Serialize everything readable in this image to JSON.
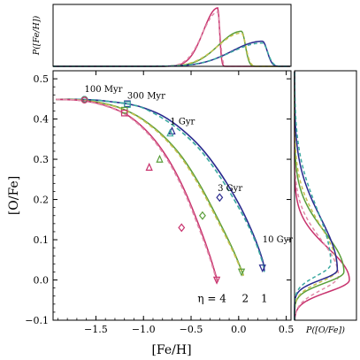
{
  "chart_data": {
    "type": "line",
    "main": {
      "xlabel": "[Fe/H]",
      "ylabel": "[O/Fe]",
      "xlim": [
        -1.95,
        0.55
      ],
      "ylim": [
        -0.1,
        0.52
      ],
      "xticks": [
        -1.5,
        -1.0,
        -0.5,
        0.0,
        0.5
      ],
      "xtick_labels": [
        "−1.5",
        "−1.0",
        "−0.5",
        "0.0",
        "0.5"
      ],
      "yticks": [
        -0.1,
        0.0,
        0.1,
        0.2,
        0.3,
        0.4,
        0.5
      ],
      "ytick_labels": [
        "−0.1",
        "0.0",
        "0.1",
        "0.2",
        "0.3",
        "0.4",
        "0.5"
      ],
      "age_annotations": [
        {
          "text": "100 Myr",
          "x": -1.62,
          "y": 0.458
        },
        {
          "text": "300 Myr",
          "x": -1.17,
          "y": 0.442
        },
        {
          "text": "1 Gyr",
          "x": -0.72,
          "y": 0.378
        },
        {
          "text": "3 Gyr",
          "x": -0.22,
          "y": 0.212
        },
        {
          "text": "10 Gyr",
          "x": 0.25,
          "y": 0.085
        }
      ],
      "eta_labels": [
        {
          "text": "η = 4",
          "x": -0.28,
          "y": -0.055
        },
        {
          "text": "2",
          "x": 0.07,
          "y": -0.055
        },
        {
          "text": "1",
          "x": 0.27,
          "y": -0.055
        }
      ],
      "series": [
        {
          "color": "#2a2a8f",
          "style": "solid",
          "x": [
            -1.92,
            -1.7,
            -1.5,
            -1.3,
            -1.15,
            -1.0,
            -0.8,
            -0.6,
            -0.4,
            -0.2,
            0.0,
            0.15,
            0.25,
            0.27
          ],
          "y": [
            0.449,
            0.449,
            0.447,
            0.442,
            0.437,
            0.428,
            0.408,
            0.375,
            0.33,
            0.268,
            0.19,
            0.115,
            0.05,
            0.022
          ]
        },
        {
          "color": "#3aa8a0",
          "style": "dashed",
          "x": [
            -1.92,
            -1.7,
            -1.5,
            -1.3,
            -1.15,
            -1.0,
            -0.8,
            -0.6,
            -0.4,
            -0.2,
            0.0,
            0.15,
            0.25,
            0.27
          ],
          "y": [
            0.449,
            0.449,
            0.447,
            0.442,
            0.437,
            0.427,
            0.402,
            0.368,
            0.322,
            0.258,
            0.18,
            0.11,
            0.045,
            0.02
          ]
        },
        {
          "color": "#5a9e3a",
          "style": "solid",
          "x": [
            -1.92,
            -1.7,
            -1.5,
            -1.3,
            -1.15,
            -1.0,
            -0.8,
            -0.6,
            -0.4,
            -0.2,
            -0.05,
            0.05
          ],
          "y": [
            0.449,
            0.448,
            0.443,
            0.432,
            0.418,
            0.398,
            0.36,
            0.307,
            0.233,
            0.143,
            0.07,
            0.012
          ]
        },
        {
          "color": "#c8c050",
          "style": "dashed",
          "x": [
            -1.92,
            -1.7,
            -1.5,
            -1.3,
            -1.15,
            -1.0,
            -0.8,
            -0.6,
            -0.4,
            -0.2,
            -0.05,
            0.05
          ],
          "y": [
            0.449,
            0.448,
            0.442,
            0.431,
            0.417,
            0.396,
            0.357,
            0.303,
            0.228,
            0.138,
            0.066,
            0.01
          ]
        },
        {
          "color": "#c8336e",
          "style": "solid",
          "x": [
            -1.92,
            -1.7,
            -1.5,
            -1.3,
            -1.15,
            -1.0,
            -0.85,
            -0.7,
            -0.55,
            -0.4,
            -0.3,
            -0.22
          ],
          "y": [
            0.449,
            0.447,
            0.44,
            0.425,
            0.407,
            0.378,
            0.338,
            0.284,
            0.213,
            0.125,
            0.058,
            -0.005
          ]
        },
        {
          "color": "#e08aa8",
          "style": "dashed",
          "x": [
            -1.92,
            -1.7,
            -1.5,
            -1.3,
            -1.15,
            -1.0,
            -0.85,
            -0.7,
            -0.55,
            -0.4,
            -0.3,
            -0.22
          ],
          "y": [
            0.449,
            0.447,
            0.439,
            0.424,
            0.405,
            0.375,
            0.334,
            0.279,
            0.207,
            0.118,
            0.052,
            -0.01
          ]
        }
      ],
      "markers": [
        {
          "color": "#2a2a8f",
          "shape": "circle",
          "x": -1.62,
          "y": 0.449
        },
        {
          "color": "#2a2a8f",
          "shape": "square",
          "x": -1.17,
          "y": 0.438
        },
        {
          "color": "#2a2a8f",
          "shape": "triangle-up",
          "x": -0.7,
          "y": 0.37
        },
        {
          "color": "#2a2a8f",
          "shape": "diamond",
          "x": -0.2,
          "y": 0.205
        },
        {
          "color": "#2a2a8f",
          "shape": "triangle-down",
          "x": 0.25,
          "y": 0.03
        },
        {
          "color": "#3aa8a0",
          "shape": "circle",
          "x": -1.62,
          "y": 0.449
        },
        {
          "color": "#3aa8a0",
          "shape": "square",
          "x": -1.17,
          "y": 0.436
        },
        {
          "color": "#3aa8a0",
          "shape": "triangle-up",
          "x": -0.72,
          "y": 0.365
        },
        {
          "color": "#5a9e3a",
          "shape": "circle",
          "x": -1.62,
          "y": 0.448
        },
        {
          "color": "#5a9e3a",
          "shape": "square",
          "x": -1.2,
          "y": 0.422
        },
        {
          "color": "#5a9e3a",
          "shape": "triangle-up",
          "x": -0.83,
          "y": 0.3
        },
        {
          "color": "#5a9e3a",
          "shape": "diamond",
          "x": -0.38,
          "y": 0.16
        },
        {
          "color": "#5a9e3a",
          "shape": "triangle-down",
          "x": 0.03,
          "y": 0.02
        },
        {
          "color": "#c8336e",
          "shape": "circle",
          "x": -1.62,
          "y": 0.447
        },
        {
          "color": "#c8336e",
          "shape": "square",
          "x": -1.2,
          "y": 0.415
        },
        {
          "color": "#c8336e",
          "shape": "triangle-up",
          "x": -0.94,
          "y": 0.28
        },
        {
          "color": "#c8336e",
          "shape": "diamond",
          "x": -0.6,
          "y": 0.13
        },
        {
          "color": "#c8336e",
          "shape": "triangle-down",
          "x": -0.23,
          "y": 0.0
        }
      ]
    },
    "top": {
      "ylabel": "P([Fe/H])",
      "peaks": [
        {
          "color": "#c8336e",
          "center": -0.22,
          "height": 1.0,
          "wl": 0.15,
          "wr": 0.02
        },
        {
          "color": "#e08aa8",
          "center": -0.22,
          "height": 0.93,
          "wl": 0.16,
          "wr": 0.025
        },
        {
          "color": "#5a9e3a",
          "center": 0.03,
          "height": 0.6,
          "wl": 0.24,
          "wr": 0.04
        },
        {
          "color": "#c8c050",
          "center": 0.03,
          "height": 0.57,
          "wl": 0.25,
          "wr": 0.045
        },
        {
          "color": "#2a2a8f",
          "center": 0.25,
          "height": 0.43,
          "wl": 0.32,
          "wr": 0.05
        },
        {
          "color": "#3aa8a0",
          "center": 0.25,
          "height": 0.4,
          "wl": 0.33,
          "wr": 0.055
        }
      ]
    },
    "right": {
      "xlabel": "P([O/Fe])",
      "peaks": [
        {
          "color": "#c8336e",
          "center": 0.0,
          "height": 1.0,
          "wb": 0.03,
          "wt": 0.08
        },
        {
          "color": "#e08aa8",
          "center": 0.01,
          "height": 0.8,
          "wb": 0.035,
          "wt": 0.09
        },
        {
          "color": "#5a9e3a",
          "center": 0.02,
          "height": 0.9,
          "wb": 0.028,
          "wt": 0.1
        },
        {
          "color": "#c8c050",
          "center": 0.025,
          "height": 0.78,
          "wb": 0.03,
          "wt": 0.11
        },
        {
          "color": "#2a2a8f",
          "center": 0.025,
          "height": 0.78,
          "wb": 0.025,
          "wt": 0.13
        },
        {
          "color": "#3aa8a0",
          "center": 0.04,
          "height": 0.66,
          "wb": 0.03,
          "wt": 0.14
        }
      ]
    }
  }
}
